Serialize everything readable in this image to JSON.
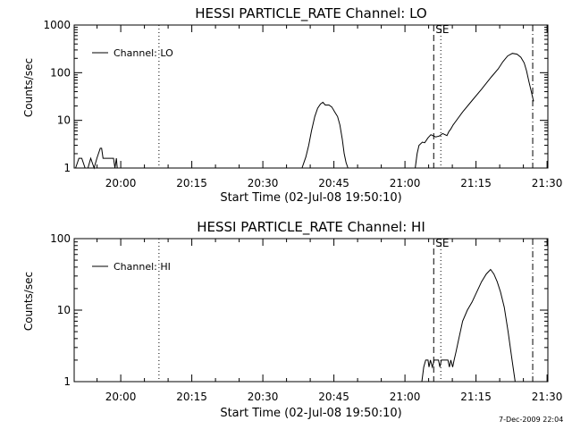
{
  "footer": {
    "timestamp": "7-Dec-2009 22:04"
  },
  "chart_data": [
    {
      "type": "line",
      "title": "HESSI PARTICLE_RATE Channel: LO",
      "xlabel": "Start Time (02-Jul-08 19:50:10)",
      "ylabel": "Counts/sec",
      "x_unit": "minutes since 19:50:10",
      "xlim": [
        0,
        100
      ],
      "ylim": [
        1,
        1000
      ],
      "y_scale": "log",
      "grid": false,
      "legend": {
        "position": "top-left",
        "entries": [
          "Channel: LO"
        ]
      },
      "x_ticks": [
        {
          "value": 9.83,
          "label": "20:00"
        },
        {
          "value": 24.83,
          "label": "20:15"
        },
        {
          "value": 39.83,
          "label": "20:30"
        },
        {
          "value": 54.83,
          "label": "20:45"
        },
        {
          "value": 69.83,
          "label": "21:00"
        },
        {
          "value": 84.83,
          "label": "21:15"
        },
        {
          "value": 99.83,
          "label": "21:30"
        }
      ],
      "y_ticks": [
        {
          "value": 1,
          "label": "1"
        },
        {
          "value": 10,
          "label": "10"
        },
        {
          "value": 100,
          "label": "100"
        },
        {
          "value": 1000,
          "label": "1000"
        }
      ],
      "vlines": [
        {
          "x": 17.9,
          "style": "dotted"
        },
        {
          "x": 75.9,
          "style": "dashed"
        },
        {
          "x": 77.4,
          "style": "dotted"
        },
        {
          "x": 96.8,
          "style": "dashdot"
        }
      ],
      "annotations": [
        {
          "x": 75.9,
          "text": "SE"
        }
      ],
      "series": [
        {
          "name": "Channel: LO",
          "segments": [
            [
              [
                0.3,
                1
              ],
              [
                1.0,
                1.6
              ],
              [
                1.6,
                1.6
              ],
              [
                2.3,
                1
              ],
              [
                2.9,
                1
              ],
              [
                3.5,
                1.6
              ],
              [
                4.2,
                1
              ],
              [
                4.8,
                1.6
              ],
              [
                5.5,
                2.6
              ],
              [
                5.8,
                2.6
              ],
              [
                6.1,
                1.6
              ],
              [
                8.3,
                1.6
              ],
              [
                8.6,
                1
              ],
              [
                8.9,
                1.6
              ],
              [
                9.1,
                1
              ]
            ],
            [
              [
                48.1,
                1
              ],
              [
                48.9,
                1.7
              ],
              [
                49.5,
                3
              ],
              [
                50.1,
                6
              ],
              [
                50.8,
                12
              ],
              [
                51.4,
                18
              ],
              [
                52.0,
                22
              ],
              [
                52.5,
                24
              ],
              [
                53.0,
                21
              ],
              [
                53.8,
                21
              ],
              [
                54.4,
                19
              ],
              [
                55.0,
                15
              ],
              [
                55.6,
                12
              ],
              [
                56.1,
                8
              ],
              [
                56.6,
                4
              ],
              [
                57.0,
                2
              ],
              [
                57.4,
                1.3
              ],
              [
                57.8,
                1
              ]
            ],
            [
              [
                72.0,
                1
              ],
              [
                72.4,
                2
              ],
              [
                72.8,
                3
              ],
              [
                73.5,
                3.5
              ],
              [
                74.0,
                3.4
              ],
              [
                74.7,
                4.3
              ],
              [
                75.3,
                5
              ],
              [
                76.3,
                4.5
              ],
              [
                77.1,
                4.7
              ],
              [
                77.8,
                5.3
              ],
              [
                78.7,
                4.8
              ],
              [
                79.1,
                5.8
              ],
              [
                79.5,
                6.6
              ],
              [
                80.0,
                8
              ],
              [
                82.0,
                15
              ],
              [
                84.0,
                26
              ],
              [
                86.0,
                45
              ],
              [
                88.0,
                80
              ],
              [
                89.5,
                120
              ],
              [
                90.5,
                170
              ],
              [
                91.5,
                225
              ],
              [
                92.5,
                255
              ],
              [
                93.5,
                245
              ],
              [
                94.3,
                210
              ],
              [
                95.0,
                160
              ],
              [
                95.5,
                110
              ],
              [
                96.0,
                65
              ],
              [
                96.5,
                40
              ],
              [
                96.8,
                30
              ],
              [
                97.0,
                25
              ]
            ]
          ]
        }
      ]
    },
    {
      "type": "line",
      "title": "HESSI PARTICLE_RATE Channel: HI",
      "xlabel": "Start Time (02-Jul-08 19:50:10)",
      "ylabel": "Counts/sec",
      "x_unit": "minutes since 19:50:10",
      "xlim": [
        0,
        100
      ],
      "ylim": [
        1,
        100
      ],
      "y_scale": "log",
      "grid": false,
      "legend": {
        "position": "top-left",
        "entries": [
          "Channel: HI"
        ]
      },
      "x_ticks": [
        {
          "value": 9.83,
          "label": "20:00"
        },
        {
          "value": 24.83,
          "label": "20:15"
        },
        {
          "value": 39.83,
          "label": "20:30"
        },
        {
          "value": 54.83,
          "label": "20:45"
        },
        {
          "value": 69.83,
          "label": "21:00"
        },
        {
          "value": 84.83,
          "label": "21:15"
        },
        {
          "value": 99.83,
          "label": "21:30"
        }
      ],
      "y_ticks": [
        {
          "value": 1,
          "label": "1"
        },
        {
          "value": 10,
          "label": "10"
        },
        {
          "value": 100,
          "label": "100"
        }
      ],
      "vlines": [
        {
          "x": 17.9,
          "style": "dotted"
        },
        {
          "x": 75.9,
          "style": "dashed"
        },
        {
          "x": 77.4,
          "style": "dotted"
        },
        {
          "x": 96.8,
          "style": "dashdot"
        }
      ],
      "annotations": [
        {
          "x": 75.9,
          "text": "SE"
        }
      ],
      "series": [
        {
          "name": "Channel: HI",
          "segments": [
            [
              [
                73.4,
                1
              ],
              [
                73.8,
                1.6
              ],
              [
                74.2,
                2
              ],
              [
                74.7,
                2
              ],
              [
                74.9,
                1.6
              ],
              [
                75.2,
                2
              ],
              [
                75.6,
                1.6
              ],
              [
                76.0,
                2
              ],
              [
                76.9,
                2
              ],
              [
                77.2,
                1.6
              ],
              [
                77.5,
                2
              ],
              [
                78.9,
                2
              ],
              [
                79.2,
                1.6
              ],
              [
                79.5,
                2
              ],
              [
                79.9,
                1.6
              ],
              [
                80.2,
                2
              ],
              [
                80.6,
                2.6
              ],
              [
                81.2,
                4
              ],
              [
                82.0,
                7
              ],
              [
                83.0,
                10
              ],
              [
                84.0,
                13
              ],
              [
                85.0,
                18
              ],
              [
                86.0,
                25
              ],
              [
                87.0,
                32
              ],
              [
                87.9,
                37
              ],
              [
                88.6,
                32
              ],
              [
                89.3,
                25
              ],
              [
                90.0,
                18
              ],
              [
                90.8,
                11
              ],
              [
                91.6,
                5
              ],
              [
                92.4,
                2.1
              ],
              [
                93.1,
                1
              ]
            ]
          ]
        }
      ]
    }
  ]
}
